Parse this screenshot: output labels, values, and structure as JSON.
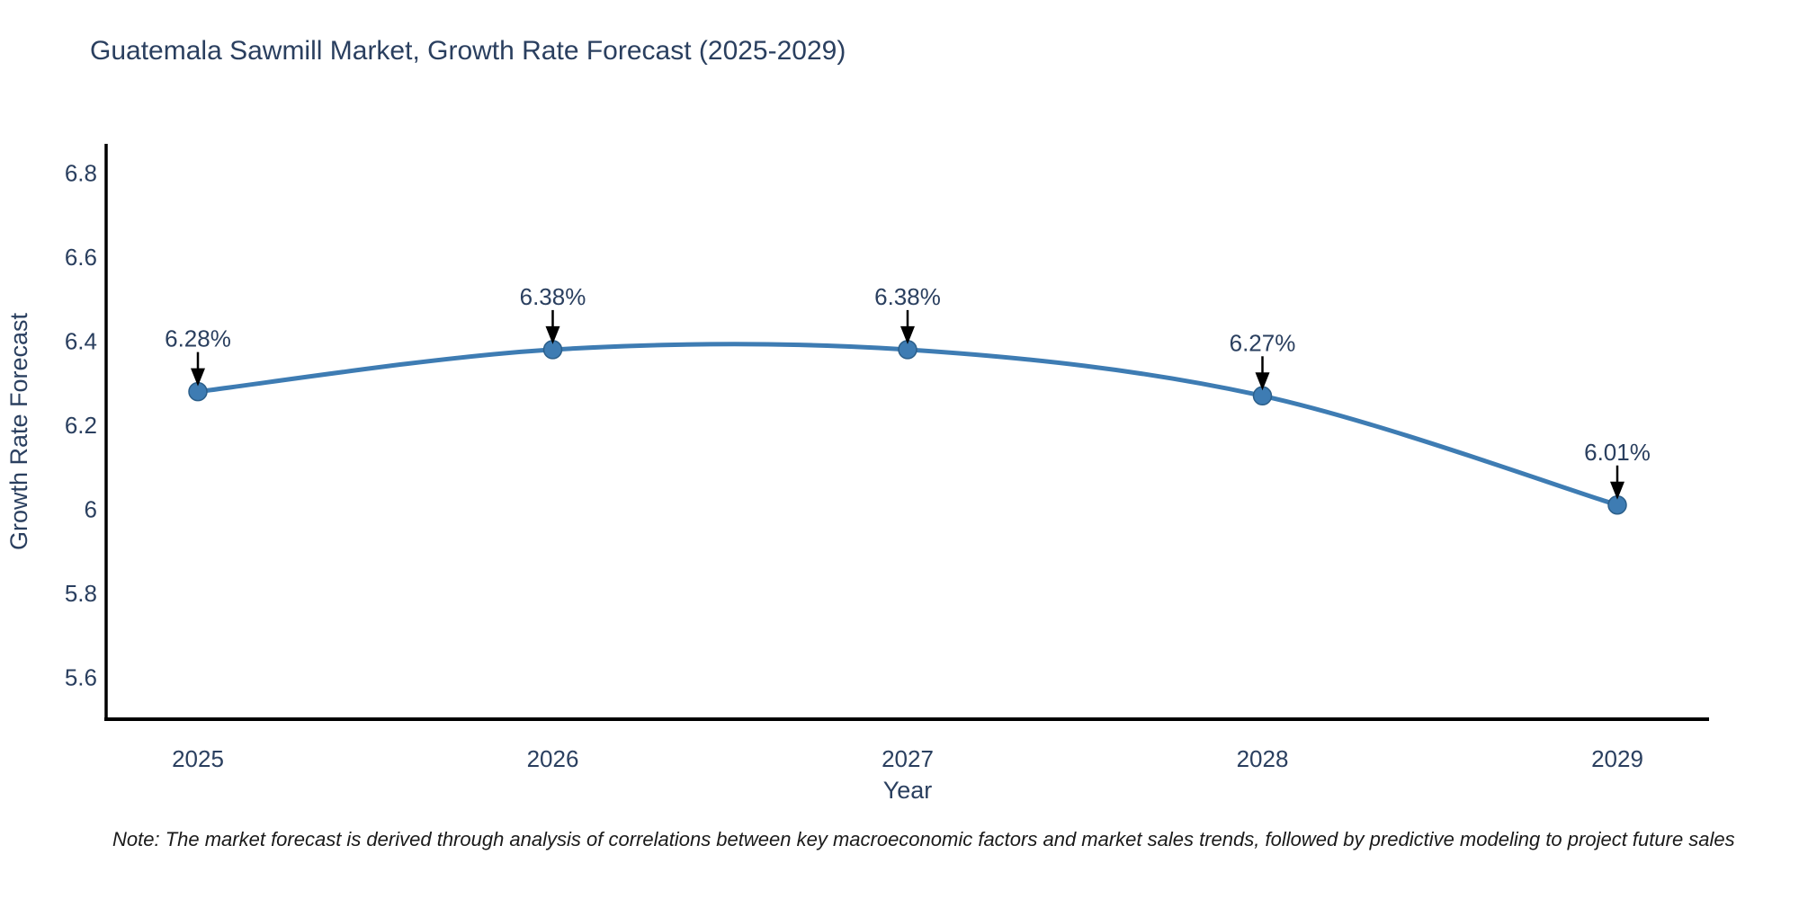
{
  "page": {
    "note": "Note: The market forecast is derived through analysis of correlations between key macroeconomic factors and market sales trends, followed by predictive modeling to project future sales"
  },
  "chart_data": {
    "type": "line",
    "title": "Guatemala Sawmill Market, Growth Rate Forecast (2025-2029)",
    "categories": [
      "2025",
      "2026",
      "2027",
      "2028",
      "2029"
    ],
    "values": [
      6.28,
      6.38,
      6.38,
      6.27,
      6.01
    ],
    "point_labels": [
      "6.28%",
      "6.38%",
      "6.38%",
      "6.27%",
      "6.01%"
    ],
    "xlabel": "Year",
    "ylabel": "Growth Rate Forecast",
    "yticks": [
      5.6,
      5.8,
      6,
      6.2,
      6.4,
      6.6,
      6.8
    ],
    "ytick_labels": [
      "5.6",
      "5.8",
      "6",
      "6.2",
      "6.4",
      "6.6",
      "6.8"
    ],
    "ylim": [
      5.5,
      6.87
    ],
    "grid": false,
    "legend": "none",
    "line_shape": "spline",
    "annotation_style": "arrow-down-to-point",
    "colors": {
      "line": "#3e7cb3",
      "marker": "#3e7cb3",
      "marker_edge": "#2c5f8a",
      "annotation": "#000000",
      "axis": "#000000",
      "text": "#2a3f5f",
      "note_text": "#1a1a1a",
      "background": "#ffffff"
    }
  }
}
